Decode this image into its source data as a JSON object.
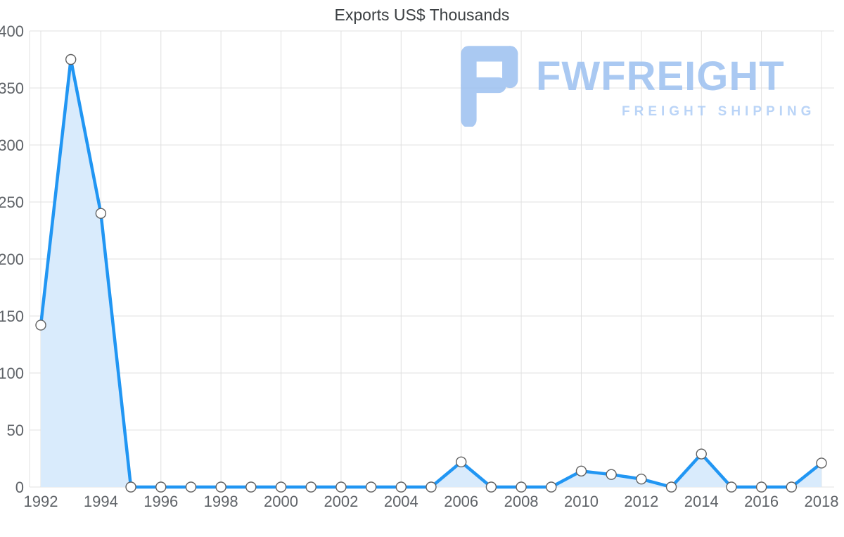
{
  "title": "Exports US$ Thousands",
  "watermark": {
    "brand": "FWFREIGHT",
    "tagline": "FREIGHT SHIPPING"
  },
  "chart_data": {
    "type": "area",
    "title": "Exports US$ Thousands",
    "xlabel": "",
    "ylabel": "",
    "x": [
      1992,
      1993,
      1994,
      1995,
      1996,
      1997,
      1998,
      1999,
      2000,
      2001,
      2002,
      2003,
      2004,
      2005,
      2006,
      2007,
      2008,
      2009,
      2010,
      2011,
      2012,
      2013,
      2014,
      2015,
      2016,
      2017,
      2018
    ],
    "values": [
      142,
      375,
      240,
      0,
      0,
      0,
      0,
      0,
      0,
      0,
      0,
      0,
      0,
      0,
      22,
      0,
      0,
      0,
      14,
      11,
      7,
      0,
      29,
      0,
      0,
      0,
      21
    ],
    "ylim": [
      0,
      400
    ],
    "yticks": [
      0,
      50,
      100,
      150,
      200,
      250,
      300,
      350,
      400
    ],
    "xticks": [
      1992,
      1994,
      1996,
      1998,
      2000,
      2002,
      2004,
      2006,
      2008,
      2010,
      2012,
      2014,
      2016,
      2018
    ],
    "grid": true,
    "legend": "none",
    "colors": {
      "line": "#2196f3",
      "fill": "#d9ebfc",
      "marker_fill": "#ffffff",
      "marker_stroke": "#606060",
      "grid": "#e0e0e0",
      "tick_label": "#5f6368",
      "title": "#3c4043",
      "watermark_primary": "#9cc0f0",
      "watermark_secondary": "#aecdf6"
    }
  }
}
